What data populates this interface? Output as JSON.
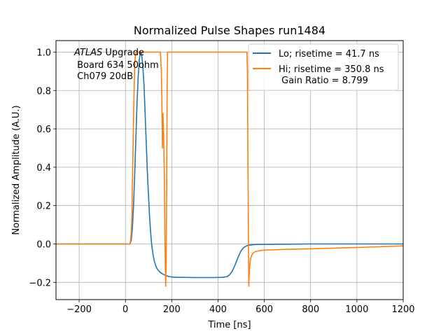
{
  "chart_data": {
    "type": "line",
    "title": "Normalized Pulse Shapes run1484",
    "xlabel": "Time [ns]",
    "ylabel": "Normalized Amplitude (A.U.)",
    "xlim": [
      -300,
      1200
    ],
    "ylim": [
      -0.29,
      1.06
    ],
    "grid": true,
    "xticks": [
      -200,
      0,
      200,
      400,
      600,
      800,
      1000,
      1200
    ],
    "xtick_labels": [
      "−200",
      "0",
      "200",
      "400",
      "600",
      "800",
      "1000",
      "1200"
    ],
    "yticks": [
      -0.2,
      0.0,
      0.2,
      0.4,
      0.6,
      0.8,
      1.0
    ],
    "ytick_labels": [
      "−0.2",
      "0.0",
      "0.2",
      "0.4",
      "0.6",
      "0.8",
      "1.0"
    ],
    "annotation": {
      "italic": "ATLAS",
      "rest": " Upgrade",
      "line2": " Board 634 50ohm",
      "line3": " Ch079 20dB"
    },
    "legend_position": "top-right",
    "series": [
      {
        "name": "Lo; risetime = 41.7 ns",
        "color": "#1f77b4",
        "x": [
          -300,
          0,
          20,
          25,
          30,
          35,
          40,
          45,
          50,
          55,
          60,
          65,
          70,
          75,
          80,
          85,
          90,
          95,
          100,
          105,
          110,
          115,
          120,
          125,
          130,
          135,
          140,
          150,
          160,
          170,
          180,
          190,
          200,
          210,
          220,
          240,
          300,
          380,
          420,
          430,
          440,
          450,
          460,
          470,
          480,
          490,
          500,
          510,
          520,
          530,
          540,
          560,
          600,
          700,
          800,
          1000,
          1200
        ],
        "y": [
          0.0,
          0.0,
          0.0,
          0.02,
          0.08,
          0.2,
          0.36,
          0.55,
          0.73,
          0.87,
          0.96,
          1.0,
          0.99,
          0.93,
          0.83,
          0.68,
          0.52,
          0.37,
          0.24,
          0.13,
          0.04,
          -0.02,
          -0.06,
          -0.09,
          -0.11,
          -0.125,
          -0.135,
          -0.148,
          -0.156,
          -0.162,
          -0.167,
          -0.17,
          -0.172,
          -0.173,
          -0.174,
          -0.174,
          -0.175,
          -0.175,
          -0.174,
          -0.172,
          -0.17,
          -0.16,
          -0.145,
          -0.12,
          -0.09,
          -0.06,
          -0.035,
          -0.02,
          -0.012,
          -0.007,
          -0.005,
          -0.003,
          -0.002,
          -0.001,
          0.0,
          0.0,
          0.0
        ]
      },
      {
        "name": "Hi; risetime = 350.8 ns",
        "color": "#ff7f0e",
        "x": [
          -300,
          0,
          20,
          22,
          25,
          28,
          30,
          33,
          36,
          40,
          44,
          48,
          150,
          152,
          155,
          158,
          160,
          162,
          165,
          168,
          170,
          172,
          174,
          176,
          178,
          180,
          182,
          525,
          527,
          529,
          531,
          533,
          536,
          540,
          545,
          550,
          560,
          580,
          600,
          650,
          700,
          800,
          1000,
          1200
        ],
        "y": [
          0.0,
          0.0,
          0.0,
          0.02,
          0.06,
          0.15,
          0.3,
          0.5,
          0.72,
          0.92,
          1.0,
          1.0,
          1.0,
          0.98,
          0.9,
          0.7,
          0.5,
          0.68,
          0.55,
          0.35,
          0.1,
          -0.1,
          -0.22,
          -0.1,
          0.3,
          0.8,
          1.0,
          1.0,
          0.9,
          0.5,
          0.1,
          -0.22,
          -0.13,
          -0.08,
          -0.06,
          -0.05,
          -0.04,
          -0.035,
          -0.032,
          -0.03,
          -0.028,
          -0.025,
          -0.018,
          -0.01
        ]
      }
    ],
    "subtext": " Gain Ratio = 8.799"
  }
}
